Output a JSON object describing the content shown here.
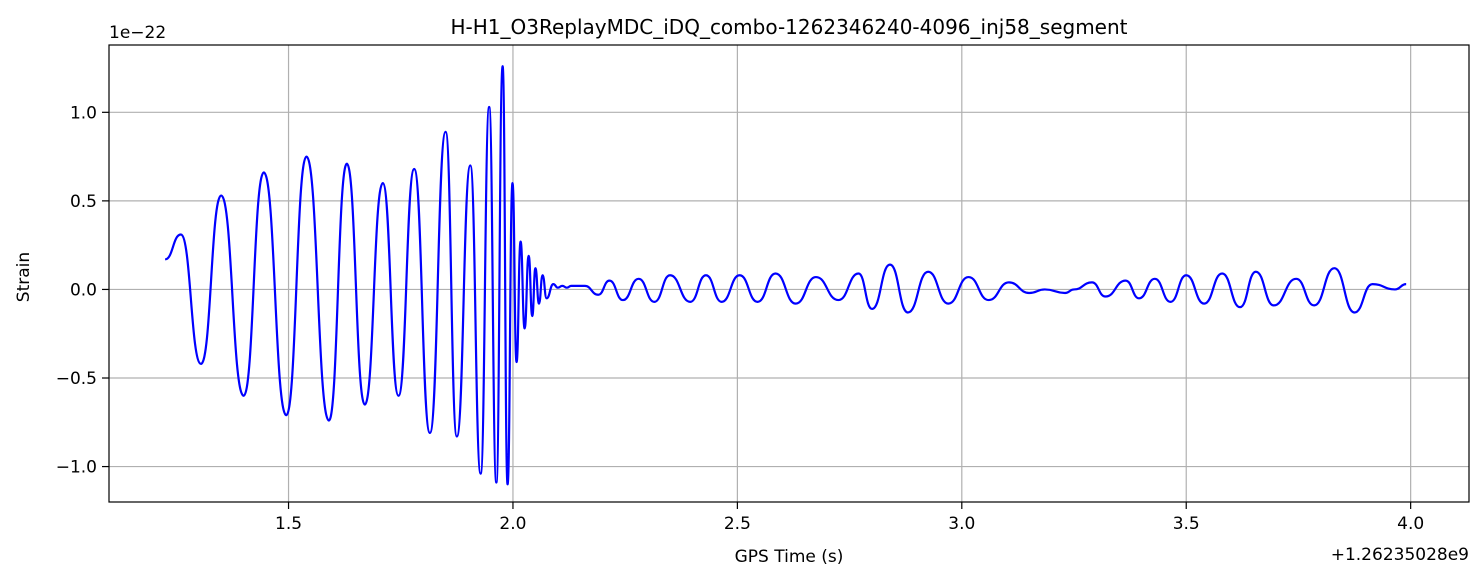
{
  "chart_data": {
    "type": "line",
    "title": "H-H1_O3ReplayMDC_iDQ_combo-1262346240-4096_inj58_segment",
    "xlabel": "GPS Time (s)",
    "ylabel": "Strain",
    "x_offset_label": "+1.26235028e9",
    "y_scale_label": "1e−22",
    "xlim": [
      1.1,
      4.13
    ],
    "ylim": [
      -1.2,
      1.38
    ],
    "xticks": [
      1.5,
      2.0,
      2.5,
      3.0,
      3.5,
      4.0
    ],
    "xtick_labels": [
      "1.5",
      "2.0",
      "2.5",
      "3.0",
      "3.5",
      "4.0"
    ],
    "yticks": [
      -1.0,
      -0.5,
      0.0,
      0.5,
      1.0
    ],
    "ytick_labels": [
      "−1.0",
      "−0.5",
      "0.0",
      "0.5",
      "1.0"
    ],
    "grid": true,
    "line_color": "#0000ff",
    "series": [
      {
        "x": [
          1.225,
          1.26,
          1.305,
          1.35,
          1.4,
          1.445,
          1.495,
          1.54,
          1.59,
          1.63,
          1.67,
          1.71,
          1.745,
          1.78,
          1.815,
          1.85,
          1.875,
          1.905,
          1.928,
          1.947,
          1.963,
          1.977,
          1.988,
          1.999,
          2.008,
          2.017,
          2.026,
          2.035,
          2.043,
          2.05,
          2.058,
          2.066,
          2.075,
          2.09,
          2.1,
          2.11,
          2.12,
          2.13,
          2.14,
          2.16,
          2.19,
          2.215,
          2.245,
          2.28,
          2.315,
          2.35,
          2.395,
          2.43,
          2.465,
          2.505,
          2.545,
          2.585,
          2.63,
          2.675,
          2.725,
          2.77,
          2.8,
          2.84,
          2.88,
          2.925,
          2.97,
          3.015,
          3.06,
          3.105,
          3.15,
          3.185,
          3.23,
          3.25,
          3.29,
          3.32,
          3.365,
          3.395,
          3.43,
          3.465,
          3.5,
          3.54,
          3.58,
          3.62,
          3.655,
          3.695,
          3.745,
          3.785,
          3.83,
          3.875,
          3.915,
          3.965,
          3.99
        ],
        "values": [
          0.17,
          0.31,
          -0.42,
          0.53,
          -0.6,
          0.66,
          -0.71,
          0.75,
          -0.74,
          0.71,
          -0.65,
          0.6,
          -0.6,
          0.68,
          -0.81,
          0.89,
          -0.83,
          0.7,
          -1.04,
          1.03,
          -1.09,
          1.26,
          -1.1,
          0.6,
          -0.41,
          0.27,
          -0.22,
          0.19,
          -0.15,
          0.12,
          -0.08,
          0.08,
          -0.05,
          0.03,
          0.01,
          0.02,
          0.01,
          0.02,
          0.02,
          0.02,
          -0.03,
          0.05,
          -0.06,
          0.06,
          -0.07,
          0.08,
          -0.07,
          0.08,
          -0.07,
          0.08,
          -0.07,
          0.09,
          -0.08,
          0.07,
          -0.06,
          0.09,
          -0.11,
          0.14,
          -0.13,
          0.1,
          -0.08,
          0.07,
          -0.06,
          0.04,
          -0.02,
          0.0,
          -0.02,
          0.0,
          0.04,
          -0.04,
          0.05,
          -0.05,
          0.06,
          -0.07,
          0.08,
          -0.08,
          0.09,
          -0.1,
          0.1,
          -0.09,
          0.06,
          -0.09,
          0.12,
          -0.13,
          0.03,
          0.0,
          0.03
        ]
      }
    ]
  }
}
